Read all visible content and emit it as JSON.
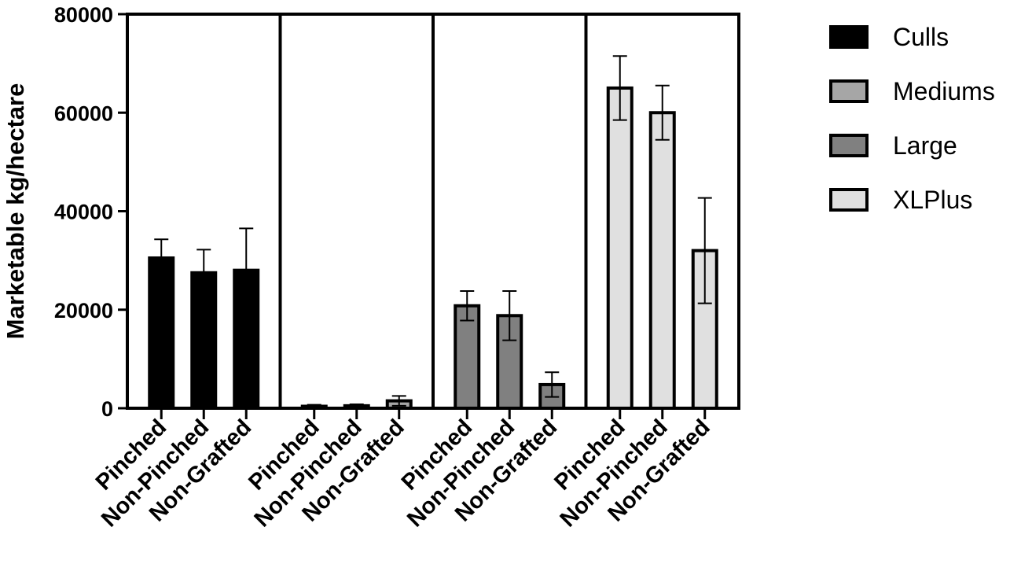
{
  "chart_data": {
    "type": "bar",
    "ylabel": "Marketable kg/hectare",
    "xlabel": "",
    "ylim": [
      0,
      80000
    ],
    "yticks": [
      "0",
      "20000",
      "40000",
      "60000",
      "80000"
    ],
    "grid": false,
    "legend_position": "right",
    "categories": [
      "Pinched",
      "Non-Pinched",
      "Non-Grafted"
    ],
    "series": [
      {
        "name": "Culls",
        "color": "#000000",
        "values": [
          30500,
          27500,
          28000
        ],
        "errors": [
          3800,
          4700,
          8500
        ]
      },
      {
        "name": "Mediums",
        "color": "#a6a6a6",
        "values": [
          400,
          500,
          1500
        ],
        "errors": [
          300,
          300,
          1000
        ]
      },
      {
        "name": "Large",
        "color": "#808080",
        "values": [
          20800,
          18800,
          4800
        ],
        "errors": [
          3000,
          5000,
          2500
        ]
      },
      {
        "name": "XLPlus",
        "color": "#e0e0e0",
        "values": [
          65000,
          60000,
          32000
        ],
        "errors": [
          6500,
          5500,
          10700
        ]
      }
    ]
  }
}
